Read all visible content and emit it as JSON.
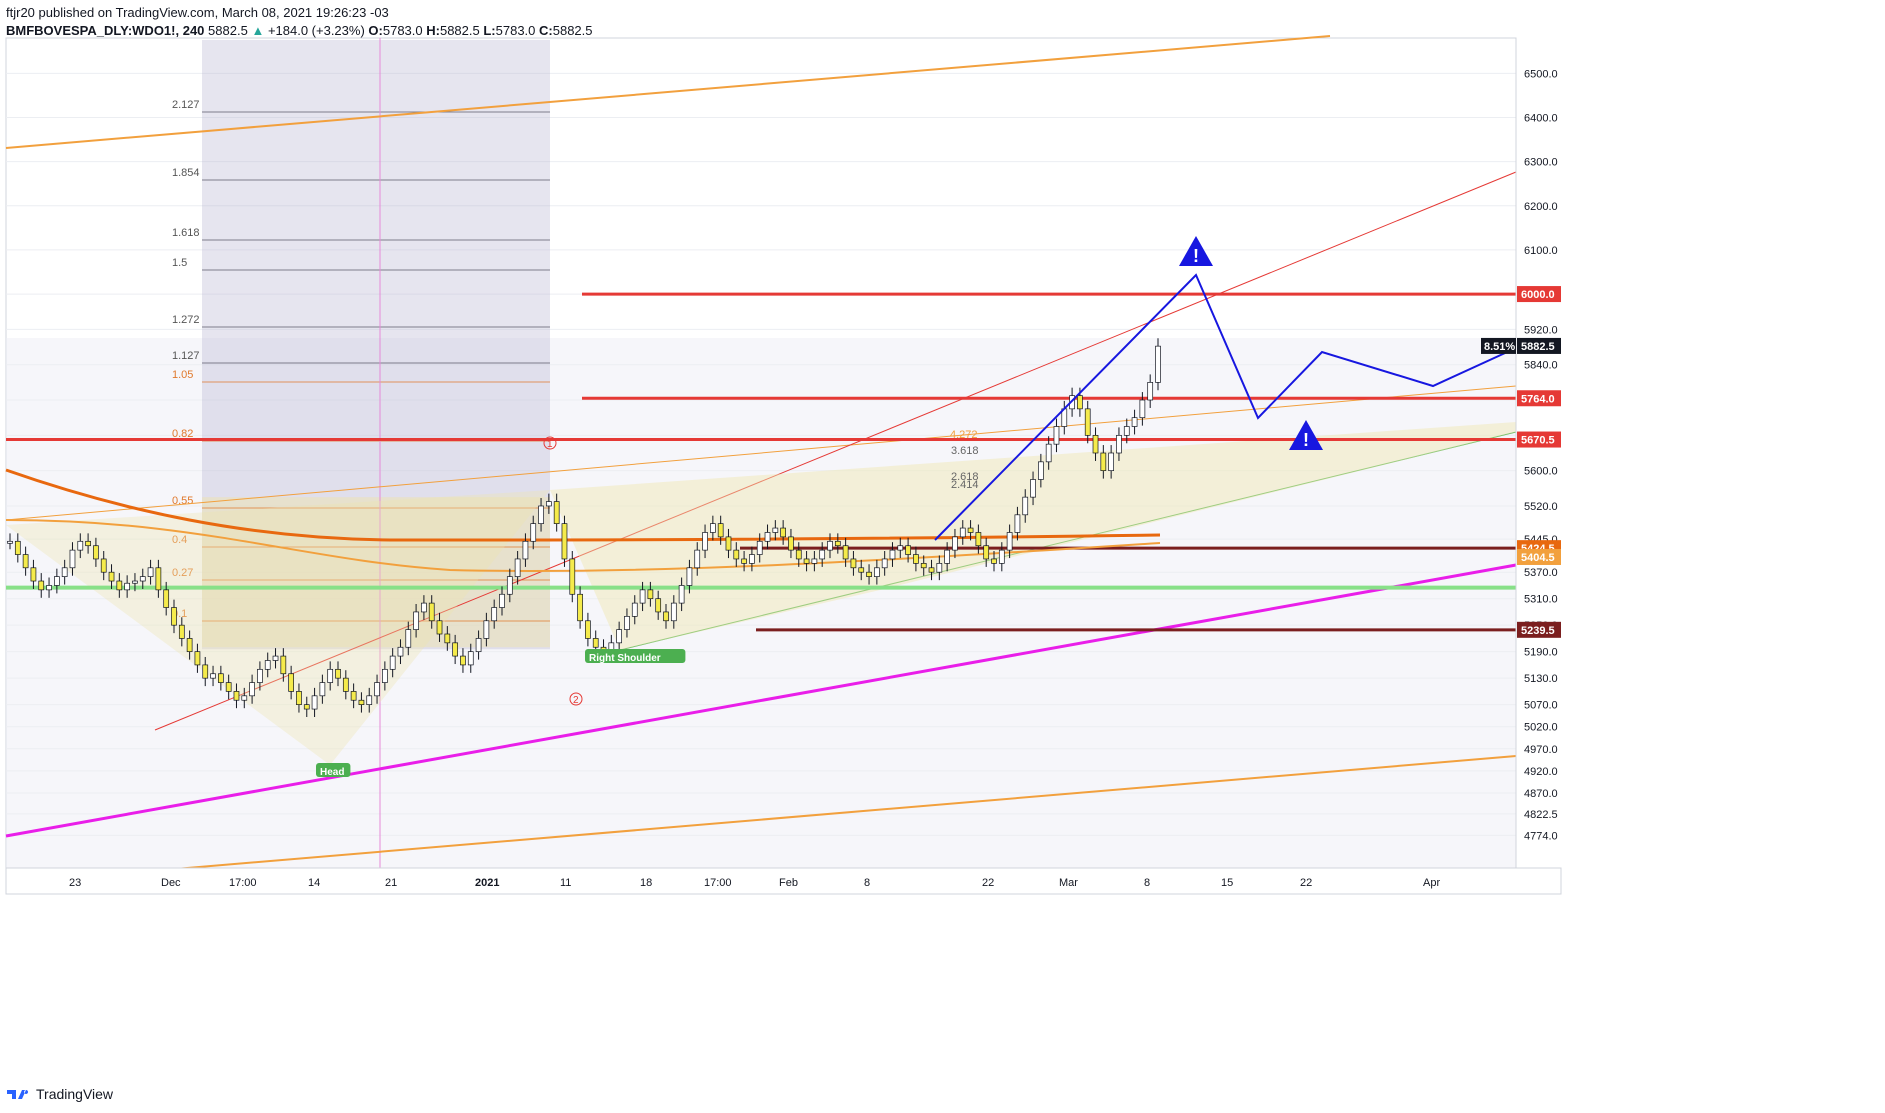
{
  "header": {
    "publisher": "ftjr20 published on TradingView.com, March 08, 2021 19:26:23 -03",
    "symbol": "BMFBOVESPA_DLY:WDO1!, 240",
    "price": "5882.5",
    "change_arrow": "▲",
    "change": "+184.0 (+3.23%)",
    "O": "5783.0",
    "H": "5882.5",
    "L": "5783.0",
    "C": "5882.5"
  },
  "footer": {
    "brand": "TradingView",
    "logo_icon": "tradingview-logo-icon"
  },
  "colors": {
    "background": "#ffffff",
    "plot_bg": "#ededf5",
    "candle_up": "#ffffff",
    "candle_down": "#f5eb4c",
    "support": "#e53935",
    "projection": "#1717e0",
    "trend_magenta": "#e91ee9",
    "ma_orange": "#e8680f",
    "channel_orange": "#f2a03d",
    "green_level": "#88e088"
  },
  "chart_data": {
    "type": "candlestick",
    "symbol": "BMFBOVESPA_DLY:WDO1!",
    "interval": "240",
    "ylim": [
      4700,
      6580
    ],
    "x_tick_labels": [
      "23",
      "Dec",
      "17:00",
      "14",
      "21",
      "2021",
      "11",
      "18",
      "17:00",
      "Feb",
      "8",
      "22",
      "Mar",
      "8",
      "15",
      "22",
      "Apr"
    ],
    "y_tick_labels": [
      "6500.0",
      "6400.0",
      "6300.0",
      "6200.0",
      "6100.0",
      "6000.0",
      "5920.0",
      "5840.0",
      "5760.0",
      "5680.0",
      "5600.0",
      "5520.0",
      "5445.0",
      "5370.0",
      "5310.0",
      "5250.0",
      "5190.0",
      "5130.0",
      "5070.0",
      "5020.0",
      "4970.0",
      "4920.0",
      "4870.0",
      "4822.5",
      "4774.0"
    ],
    "price_badges": [
      {
        "label": "6000.0",
        "value": 6000,
        "color": "#e53935"
      },
      {
        "label": "5882.5",
        "value": 5882.5,
        "color": "#131722",
        "pct": "8.51%"
      },
      {
        "label": "5764.0",
        "value": 5764,
        "color": "#e53935"
      },
      {
        "label": "5670.5",
        "value": 5670.5,
        "color": "#e53935"
      },
      {
        "label": "5424.5",
        "value": 5424.5,
        "color": "#e8680f"
      },
      {
        "label": "5404.5",
        "value": 5404.5,
        "color": "#f2a03d"
      },
      {
        "label": "5239.5",
        "value": 5239.5,
        "color": "#7b1f1f"
      }
    ],
    "horizontal_levels": [
      {
        "value": 6000,
        "color": "#e53935"
      },
      {
        "value": 5764,
        "color": "#e53935"
      },
      {
        "value": 5670.5,
        "color": "#e53935"
      },
      {
        "value": 5424.5,
        "color": "#7b1f1f"
      },
      {
        "value": 5239.5,
        "color": "#7b1f1f"
      },
      {
        "value": 5335,
        "color": "#88e088"
      }
    ],
    "fib_levels": [
      {
        "label": "2.127"
      },
      {
        "label": "1.854"
      },
      {
        "label": "1.618"
      },
      {
        "label": "1.5"
      },
      {
        "label": "1.272"
      },
      {
        "label": "1.127"
      },
      {
        "label": "1.05"
      },
      {
        "label": "0.82"
      },
      {
        "label": "0.55"
      },
      {
        "label": "0.4"
      },
      {
        "label": "0.27"
      },
      {
        "label": "0.1"
      }
    ],
    "fib_small_labels": [
      "4.272",
      "3.618",
      "2.618",
      "2.414"
    ],
    "pattern_labels": [
      "Head",
      "Right Shoulder"
    ],
    "wave_labels": [
      "1",
      "2"
    ],
    "warning_icons": 2,
    "candles_close": [
      5440,
      5410,
      5380,
      5350,
      5330,
      5340,
      5360,
      5380,
      5420,
      5440,
      5430,
      5400,
      5370,
      5350,
      5330,
      5345,
      5350,
      5360,
      5380,
      5330,
      5290,
      5250,
      5220,
      5190,
      5160,
      5130,
      5140,
      5120,
      5100,
      5080,
      5090,
      5120,
      5150,
      5170,
      5180,
      5140,
      5100,
      5070,
      5060,
      5090,
      5120,
      5150,
      5130,
      5100,
      5080,
      5070,
      5090,
      5120,
      5150,
      5180,
      5200,
      5240,
      5280,
      5300,
      5260,
      5230,
      5210,
      5180,
      5160,
      5190,
      5220,
      5260,
      5290,
      5320,
      5360,
      5400,
      5440,
      5480,
      5520,
      5530,
      5480,
      5400,
      5320,
      5260,
      5220,
      5200,
      5190,
      5210,
      5240,
      5270,
      5300,
      5330,
      5310,
      5280,
      5260,
      5300,
      5340,
      5380,
      5420,
      5460,
      5480,
      5450,
      5420,
      5400,
      5390,
      5410,
      5440,
      5460,
      5470,
      5450,
      5420,
      5400,
      5390,
      5400,
      5420,
      5440,
      5430,
      5400,
      5380,
      5370,
      5360,
      5380,
      5400,
      5420,
      5430,
      5410,
      5390,
      5380,
      5370,
      5390,
      5420,
      5450,
      5470,
      5460,
      5430,
      5400,
      5390,
      5420,
      5460,
      5500,
      5540,
      5580,
      5620,
      5660,
      5700,
      5740,
      5770,
      5740,
      5680,
      5640,
      5600,
      5640,
      5680,
      5700,
      5720,
      5760,
      5800,
      5882
    ]
  }
}
